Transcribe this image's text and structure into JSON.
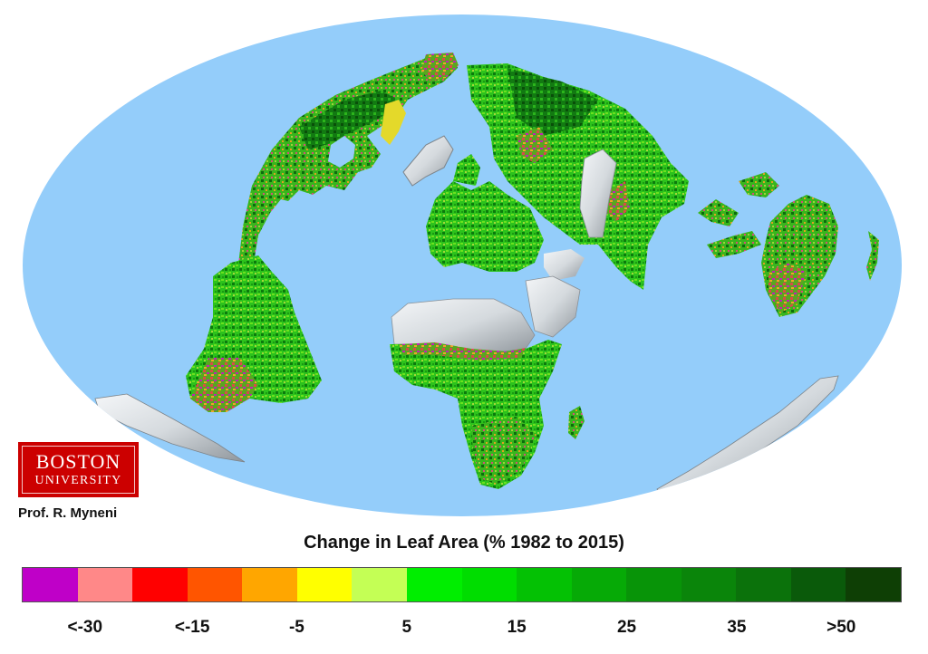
{
  "map": {
    "projection": "oblique elliptical world map",
    "ocean_color": "#94cdfa",
    "land_colors": {
      "vegetation_green": "#2fbf1a",
      "dense_green": "#0e6e0e",
      "browning": "#d9534f",
      "desert_ice": "#e8ecef",
      "shadow": "#8a9096"
    }
  },
  "logo": {
    "line1": "BOSTON",
    "line2": "UNIVERSITY",
    "color": "#cc0000"
  },
  "credit": "Prof. R. Myneni",
  "title": "Change in Leaf Area (% 1982 to 2015)",
  "legend": {
    "swatches": [
      "#bf00c8",
      "#ff8888",
      "#ff0000",
      "#ff5500",
      "#ffa600",
      "#ffff00",
      "#c4ff55",
      "#00ee00",
      "#00dd00",
      "#04c104",
      "#06aa06",
      "#089408",
      "#0a850a",
      "#0b720b",
      "#0a5a0a",
      "#0e3f05"
    ],
    "labels": [
      "<-30",
      "<-15",
      "-5",
      "5",
      "15",
      "25",
      "35",
      ">50"
    ]
  },
  "chart_data": {
    "type": "heatmap",
    "title": "Change in Leaf Area (% 1982 to 2015)",
    "colorbar": {
      "bins": 16,
      "tick_labels": [
        "<-30",
        "<-15",
        "-5",
        "5",
        "15",
        "25",
        "35",
        ">50"
      ],
      "range": [
        "<-30",
        ">50"
      ],
      "units": "% change",
      "colors": [
        "#bf00c8",
        "#ff8888",
        "#ff0000",
        "#ff5500",
        "#ffa600",
        "#ffff00",
        "#c4ff55",
        "#00ee00",
        "#00dd00",
        "#04c104",
        "#06aa06",
        "#089408",
        "#0a850a",
        "#0b720b",
        "#0a5a0a",
        "#0e3f05"
      ]
    },
    "regions": [
      {
        "name": "North America",
        "dominant": "greening with browning patches in Alaska/NW Canada"
      },
      {
        "name": "South America",
        "dominant": "greening, browning in south-central"
      },
      {
        "name": "Europe",
        "dominant": "strong greening"
      },
      {
        "name": "Africa",
        "dominant": "greening; Sahara no data (white)"
      },
      {
        "name": "Asia",
        "dominant": "strong greening; Tibet/Central Asia deserts white"
      },
      {
        "name": "Australia",
        "dominant": "mixed greening/browning"
      },
      {
        "name": "Greenland",
        "dominant": "ice (white)"
      },
      {
        "name": "Antarctica",
        "dominant": "ice (white)"
      }
    ],
    "credit": "Prof. R. Myneni, Boston University"
  }
}
